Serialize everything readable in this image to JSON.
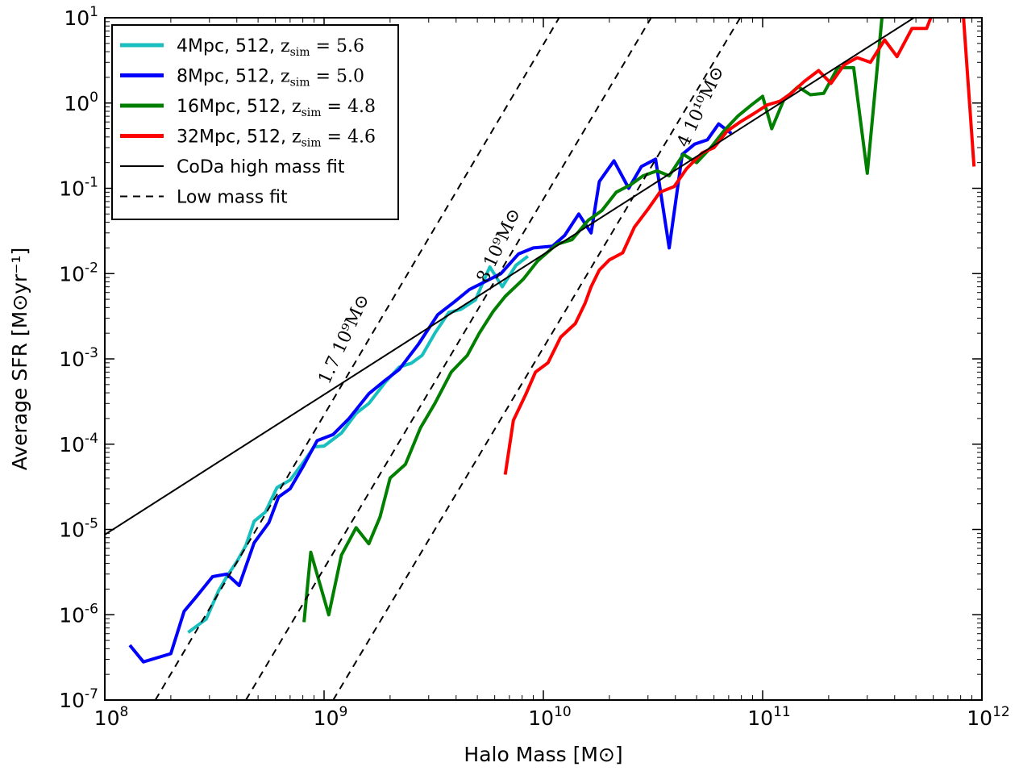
{
  "chart_data": {
    "type": "line",
    "title": "",
    "xlabel": "Halo Mass [M⊙]",
    "ylabel": "Average SFR [M⊙yr⁻¹]",
    "xscale": "log",
    "yscale": "log",
    "xlim": [
      100000000.0,
      1000000000000.0
    ],
    "ylim": [
      1e-07,
      10
    ],
    "grid": false,
    "legend_position": "top-left",
    "x_ticks": [
      {
        "base": "10",
        "exp": "8",
        "value": 100000000.0
      },
      {
        "base": "10",
        "exp": "9",
        "value": 1000000000.0
      },
      {
        "base": "10",
        "exp": "10",
        "value": 10000000000.0
      },
      {
        "base": "10",
        "exp": "11",
        "value": 100000000000.0
      },
      {
        "base": "10",
        "exp": "12",
        "value": 1000000000000.0
      }
    ],
    "y_ticks": [
      {
        "base": "10",
        "exp": "1",
        "value": 10
      },
      {
        "base": "10",
        "exp": "0",
        "value": 1
      },
      {
        "base": "10",
        "exp": "-1",
        "value": 0.1
      },
      {
        "base": "10",
        "exp": "-2",
        "value": 0.01
      },
      {
        "base": "10",
        "exp": "-3",
        "value": 0.001
      },
      {
        "base": "10",
        "exp": "-4",
        "value": 0.0001
      },
      {
        "base": "10",
        "exp": "-5",
        "value": 1e-05
      },
      {
        "base": "10",
        "exp": "-6",
        "value": 1e-06
      },
      {
        "base": "10",
        "exp": "-7",
        "value": 1e-07
      }
    ],
    "series": [
      {
        "name": "4Mpc, 512, z_sim = 5.6",
        "color": "#17bfbf",
        "style": "solid",
        "points": [
          [
            240000000.0,
            6.2e-07
          ],
          [
            290000000.0,
            8.9e-07
          ],
          [
            330000000.0,
            1.9e-06
          ],
          [
            360000000.0,
            2.8e-06
          ],
          [
            400000000.0,
            4.2e-06
          ],
          [
            440000000.0,
            6.5e-06
          ],
          [
            480000000.0,
            1.25e-05
          ],
          [
            540000000.0,
            1.6e-05
          ],
          [
            610000000.0,
            3.1e-05
          ],
          [
            700000000.0,
            3.8e-05
          ],
          [
            800000000.0,
            6e-05
          ],
          [
            900000000.0,
            9.3e-05
          ],
          [
            1000000000.0,
            9.5e-05
          ],
          [
            1200000000.0,
            0.000135
          ],
          [
            1400000000.0,
            0.00023
          ],
          [
            1600000000.0,
            0.0003
          ],
          [
            1900000000.0,
            0.00053
          ],
          [
            2200000000.0,
            0.0008
          ],
          [
            2500000000.0,
            0.00089
          ],
          [
            2800000000.0,
            0.0011
          ],
          [
            3200000000.0,
            0.002
          ],
          [
            3700000000.0,
            0.0035
          ],
          [
            4200000000.0,
            0.0038
          ],
          [
            4900000000.0,
            0.0049
          ],
          [
            5700000000.0,
            0.012
          ],
          [
            6500000000.0,
            0.007
          ],
          [
            7500000000.0,
            0.0125
          ],
          [
            8500000000.0,
            0.016
          ]
        ]
      },
      {
        "name": "8Mpc, 512, z_sim = 5.0",
        "color": "#0000ff",
        "style": "solid",
        "points": [
          [
            130000000.0,
            4.4e-07
          ],
          [
            150000000.0,
            2.8e-07
          ],
          [
            200000000.0,
            3.5e-07
          ],
          [
            230000000.0,
            1.1e-06
          ],
          [
            260000000.0,
            1.6e-06
          ],
          [
            310000000.0,
            2.8e-06
          ],
          [
            360000000.0,
            3e-06
          ],
          [
            410000000.0,
            2.2e-06
          ],
          [
            480000000.0,
            7e-06
          ],
          [
            560000000.0,
            1.2e-05
          ],
          [
            620000000.0,
            2.4e-05
          ],
          [
            700000000.0,
            3e-05
          ],
          [
            800000000.0,
            5.4e-05
          ],
          [
            930000000.0,
            0.00011
          ],
          [
            1100000000.0,
            0.00013
          ],
          [
            1300000000.0,
            0.0002
          ],
          [
            1600000000.0,
            0.00039
          ],
          [
            1900000000.0,
            0.00056
          ],
          [
            2200000000.0,
            0.00075
          ],
          [
            2700000000.0,
            0.0015
          ],
          [
            3300000000.0,
            0.0033
          ],
          [
            3900000000.0,
            0.0046
          ],
          [
            4600000000.0,
            0.0065
          ],
          [
            5400000000.0,
            0.008
          ],
          [
            6400000000.0,
            0.01
          ],
          [
            7700000000.0,
            0.017
          ],
          [
            9000000000.0,
            0.02
          ],
          [
            11000000000.0,
            0.021
          ],
          [
            12500000000.0,
            0.028
          ],
          [
            14500000000.0,
            0.05
          ],
          [
            16500000000.0,
            0.03
          ],
          [
            18000000000.0,
            0.12
          ],
          [
            21000000000.0,
            0.21
          ],
          [
            24500000000.0,
            0.1
          ],
          [
            28000000000.0,
            0.18
          ],
          [
            32500000000.0,
            0.22
          ],
          [
            37500000000.0,
            0.02
          ],
          [
            43000000000.0,
            0.25
          ],
          [
            49000000000.0,
            0.33
          ],
          [
            56000000000.0,
            0.37
          ],
          [
            63000000000.0,
            0.57
          ],
          [
            72000000000.0,
            0.44
          ]
        ]
      },
      {
        "name": "16Mpc, 512, z_sim = 4.8",
        "color": "#007f00",
        "style": "solid",
        "points": [
          [
            810000000.0,
            8.2e-07
          ],
          [
            870000000.0,
            5.4e-06
          ],
          [
            1050000000.0,
            1e-06
          ],
          [
            1200000000.0,
            5e-06
          ],
          [
            1400000000.0,
            1.05e-05
          ],
          [
            1600000000.0,
            6.8e-06
          ],
          [
            1800000000.0,
            1.4e-05
          ],
          [
            2000000000.0,
            4e-05
          ],
          [
            2350000000.0,
            5.8e-05
          ],
          [
            2750000000.0,
            0.000155
          ],
          [
            3200000000.0,
            0.0003
          ],
          [
            3800000000.0,
            0.0007
          ],
          [
            4500000000.0,
            0.0011
          ],
          [
            5100000000.0,
            0.002
          ],
          [
            5900000000.0,
            0.0036
          ],
          [
            6700000000.0,
            0.0054
          ],
          [
            8100000000.0,
            0.0086
          ],
          [
            9400000000.0,
            0.014
          ],
          [
            11500000000.0,
            0.022
          ],
          [
            13500000000.0,
            0.025
          ],
          [
            16000000000.0,
            0.042
          ],
          [
            18500000000.0,
            0.055
          ],
          [
            21500000000.0,
            0.09
          ],
          [
            25000000000.0,
            0.11
          ],
          [
            28500000000.0,
            0.14
          ],
          [
            33000000000.0,
            0.16
          ],
          [
            37500000000.0,
            0.14
          ],
          [
            43500000000.0,
            0.25
          ],
          [
            50000000000.0,
            0.2
          ],
          [
            58000000000.0,
            0.3
          ],
          [
            67000000000.0,
            0.48
          ],
          [
            77000000000.0,
            0.7
          ],
          [
            89000000000.0,
            0.95
          ],
          [
            100000000000.0,
            1.2
          ],
          [
            110000000000.0,
            0.5
          ],
          [
            125000000000.0,
            1.1
          ],
          [
            145000000000.0,
            1.55
          ],
          [
            165000000000.0,
            1.25
          ],
          [
            190000000000.0,
            1.3
          ],
          [
            220000000000.0,
            2.6
          ],
          [
            260000000000.0,
            2.6
          ],
          [
            300000000000.0,
            0.15
          ],
          [
            350000000000.0,
            10
          ]
        ]
      },
      {
        "name": "32Mpc, 512, z_sim = 4.6",
        "color": "#ff0000",
        "style": "solid",
        "points": [
          [
            6700000000.0,
            4.4e-05
          ],
          [
            7300000000.0,
            0.00019
          ],
          [
            8300000000.0,
            0.00038
          ],
          [
            9200000000.0,
            0.0007
          ],
          [
            10500000000.0,
            0.0009
          ],
          [
            12000000000.0,
            0.0018
          ],
          [
            14000000000.0,
            0.0026
          ],
          [
            15500000000.0,
            0.0045
          ],
          [
            16500000000.0,
            0.007
          ],
          [
            18000000000.0,
            0.011
          ],
          [
            20000000000.0,
            0.0145
          ],
          [
            23000000000.0,
            0.0175
          ],
          [
            26000000000.0,
            0.035
          ],
          [
            30000000000.0,
            0.057
          ],
          [
            34000000000.0,
            0.09
          ],
          [
            39500000000.0,
            0.105
          ],
          [
            45000000000.0,
            0.17
          ],
          [
            53000000000.0,
            0.26
          ],
          [
            60000000000.0,
            0.3
          ],
          [
            69000000000.0,
            0.47
          ],
          [
            79000000000.0,
            0.6
          ],
          [
            91000000000.0,
            0.75
          ],
          [
            105000000000.0,
            0.95
          ],
          [
            120000000000.0,
            1.05
          ],
          [
            135000000000.0,
            1.3
          ],
          [
            155000000000.0,
            1.8
          ],
          [
            180000000000.0,
            2.4
          ],
          [
            205000000000.0,
            1.7
          ],
          [
            235000000000.0,
            2.8
          ],
          [
            270000000000.0,
            3.4
          ],
          [
            310000000000.0,
            3.0
          ],
          [
            360000000000.0,
            5.5
          ],
          [
            410000000000.0,
            3.5
          ],
          [
            480000000000.0,
            7.5
          ],
          [
            560000000000.0,
            7.5
          ],
          [
            600000000000.0,
            12
          ]
        ]
      },
      {
        "name": "32Mpc, 512, z_sim = 4.6",
        "color": "#ff0000",
        "style": "solid",
        "legend": false,
        "points": [
          [
            820000000000.0,
            12
          ],
          [
            920000000000.0,
            0.18
          ]
        ]
      },
      {
        "name": "CoDa high mass fit",
        "color": "#000000",
        "style": "solid",
        "points": [
          [
            100000000.0,
            8.7e-06
          ],
          [
            490000000000.0,
            10
          ]
        ]
      },
      {
        "name": "Low mass fit",
        "color": "#000000",
        "style": "dashed",
        "points": [
          [
            170000000.0,
            1e-07
          ],
          [
            11800000000.0,
            10
          ]
        ]
      },
      {
        "name": "Low mass fit",
        "color": "#000000",
        "style": "dashed",
        "legend": false,
        "points": [
          [
            440000000.0,
            1e-07
          ],
          [
            31000000000.0,
            10
          ]
        ]
      },
      {
        "name": "Low mass fit",
        "color": "#000000",
        "style": "dashed",
        "legend": false,
        "points": [
          [
            1100000000.0,
            1e-07
          ],
          [
            79000000000.0,
            10
          ]
        ]
      }
    ],
    "legend": [
      {
        "label": "4Mpc, 512, ",
        "math": "z",
        "sub": "sim",
        "eq": " = 5.6",
        "color": "#17bfbf",
        "style": "solid"
      },
      {
        "label": "8Mpc, 512, ",
        "math": "z",
        "sub": "sim",
        "eq": " = 5.0",
        "color": "#0000ff",
        "style": "solid"
      },
      {
        "label": "16Mpc, 512, ",
        "math": "z",
        "sub": "sim",
        "eq": " = 4.8",
        "color": "#007f00",
        "style": "solid"
      },
      {
        "label": "32Mpc, 512, ",
        "math": "z",
        "sub": "sim",
        "eq": " = 4.6",
        "color": "#ff0000",
        "style": "solid"
      },
      {
        "label": "CoDa high mass fit",
        "math": "",
        "sub": "",
        "eq": "",
        "color": "#000000",
        "style": "solid-thin"
      },
      {
        "label": "Low mass fit",
        "math": "",
        "sub": "",
        "eq": "",
        "color": "#000000",
        "style": "dashed"
      }
    ],
    "annotations": [
      {
        "text": "1.7 10⁹M⊙",
        "x": 1300000000.0,
        "y": 0.0016
      },
      {
        "text": "8 10⁹M⊙",
        "x": 6600000000.0,
        "y": 0.02
      },
      {
        "text": "4 10¹⁰M⊙",
        "x": 55000000000.0,
        "y": 0.85
      }
    ]
  }
}
